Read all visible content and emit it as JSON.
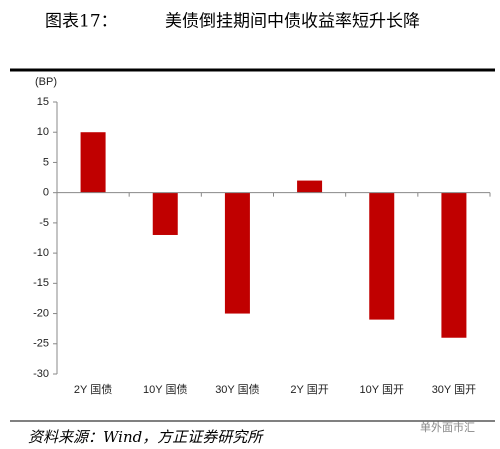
{
  "chart_data": {
    "type": "bar",
    "label": "图表17：",
    "title": "美债倒挂期间中债收益率短升长降",
    "y_axis_label": "(BP)",
    "categories": [
      "2Y 国债",
      "10Y 国债",
      "30Y 国债",
      "2Y 国开",
      "10Y 国开",
      "30Y 国开"
    ],
    "values": [
      10,
      -7,
      -20,
      2,
      -21,
      -24
    ],
    "color": "#c00000",
    "ylim": [
      -30,
      15
    ],
    "yticks": [
      15,
      10,
      5,
      0,
      -5,
      -10,
      -15,
      -20,
      -25,
      -30
    ],
    "source": "资料来源：Wind，方正证券研究所",
    "watermark": "单外面市汇"
  }
}
